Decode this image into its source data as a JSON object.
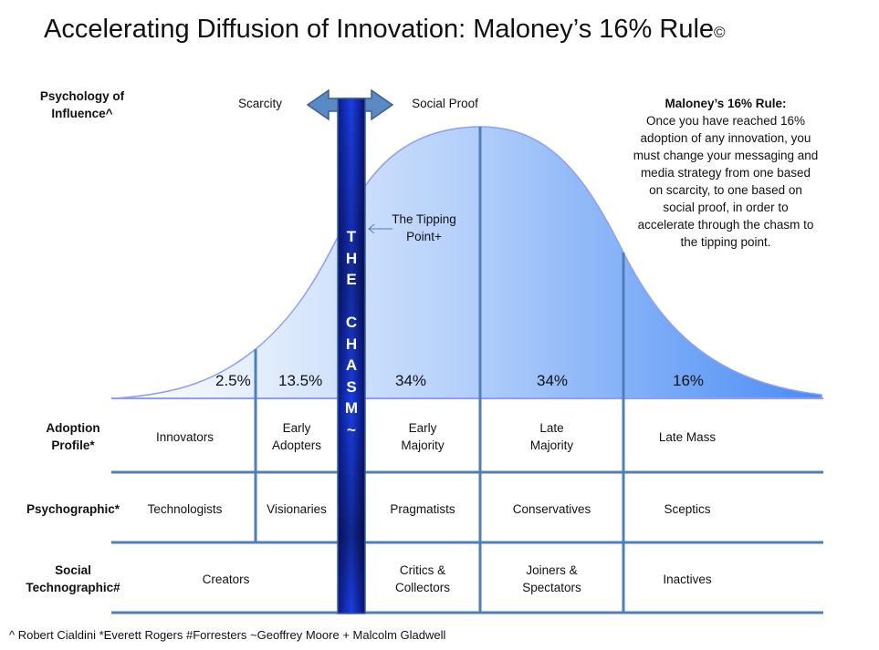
{
  "title": "Accelerating Diffusion of Innovation: Maloney’s 16% Rule",
  "title_mark": "©",
  "influence": {
    "row_label_line1": "Psychology of",
    "row_label_line2": "Influence^",
    "left": "Scarcity",
    "right": "Social Proof"
  },
  "tipping_point": {
    "line1": "The Tipping",
    "line2": "Point+"
  },
  "chasm": {
    "letters": [
      "T",
      "H",
      "E",
      "",
      "C",
      "H",
      "A",
      "S",
      "M",
      "~"
    ]
  },
  "rule": {
    "title": "Maloney’s 16% Rule:",
    "lines": [
      "Once you have reached 16%",
      "adoption of any innovation,  you",
      "must change your messaging and",
      "media strategy from one based",
      "on scarcity, to one based on",
      "social proof, in order to",
      "accelerate through the chasm to",
      "the tipping point."
    ]
  },
  "percentages": [
    "2.5%",
    "13.5%",
    "34%",
    "34%",
    "16%"
  ],
  "rows": [
    {
      "label1": "Adoption",
      "label2": "Profile*",
      "cells": [
        [
          "Innovators"
        ],
        [
          "Early",
          "Adopters"
        ],
        [
          "Early",
          "Majority"
        ],
        [
          "Late",
          "Majority"
        ],
        [
          "Late Mass"
        ]
      ]
    },
    {
      "label1": "Psychographic*",
      "label2": "",
      "cells": [
        [
          "Technologists"
        ],
        [
          "Visionaries"
        ],
        [
          "Pragmatists"
        ],
        [
          "Conservatives"
        ],
        [
          "Sceptics"
        ]
      ]
    },
    {
      "label1": "Social",
      "label2": "Technographic#",
      "cells": [
        [
          "Creators"
        ],
        [
          "Critics &",
          "Collectors"
        ],
        [
          "Joiners &",
          "Spectators"
        ],
        [
          "Inactives"
        ]
      ]
    }
  ],
  "footnote": "^ Robert Cialdini *Everett Rogers  #Forresters ~Geoffrey Moore + Malcolm Gladwell",
  "colors": {
    "curve_light": "#eef4fd",
    "curve_dark": "#4a8cf5",
    "grid": "#4f7fb8",
    "chasm": "#0a1a9a",
    "arrow": "#4f7fb8"
  }
}
